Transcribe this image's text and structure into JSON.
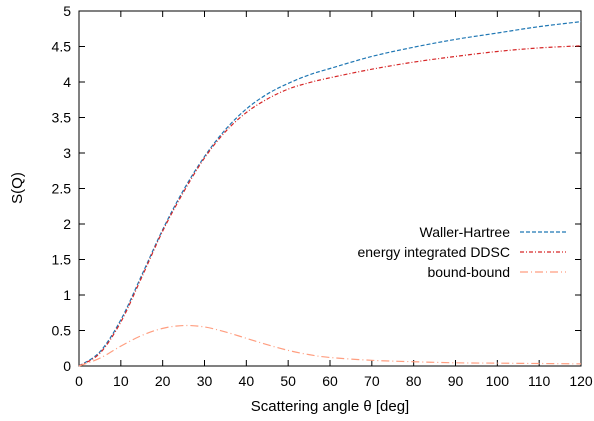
{
  "chart_data": {
    "type": "line",
    "title": "",
    "xlabel": "Scattering angle θ [deg]",
    "ylabel": "S(Q)",
    "xlim": [
      0,
      120
    ],
    "ylim": [
      0,
      5
    ],
    "xticks": [
      0,
      10,
      20,
      30,
      40,
      50,
      60,
      70,
      80,
      90,
      100,
      110,
      120
    ],
    "yticks": [
      0,
      0.5,
      1,
      1.5,
      2,
      2.5,
      3,
      3.5,
      4,
      4.5,
      5
    ],
    "grid": false,
    "legend_position": "right",
    "series": [
      {
        "name": "Waller-Hartree",
        "color": "#1f77b4",
        "dash": "dashed",
        "x": [
          0,
          5,
          10,
          15,
          20,
          25,
          30,
          35,
          40,
          45,
          50,
          55,
          60,
          70,
          80,
          90,
          100,
          110,
          120
        ],
        "y": [
          0.0,
          0.2,
          0.65,
          1.28,
          1.92,
          2.48,
          2.95,
          3.33,
          3.62,
          3.83,
          3.98,
          4.1,
          4.19,
          4.36,
          4.49,
          4.6,
          4.69,
          4.78,
          4.85
        ]
      },
      {
        "name": "energy integrated DDSC",
        "color": "#d62728",
        "dash": "dash-dot",
        "x": [
          0,
          5,
          10,
          15,
          20,
          25,
          30,
          35,
          40,
          45,
          50,
          55,
          60,
          70,
          80,
          90,
          100,
          110,
          120
        ],
        "y": [
          0.0,
          0.18,
          0.62,
          1.25,
          1.9,
          2.45,
          2.93,
          3.3,
          3.57,
          3.76,
          3.9,
          3.99,
          4.06,
          4.18,
          4.28,
          4.36,
          4.43,
          4.48,
          4.51
        ]
      },
      {
        "name": "bound-bound",
        "color": "#ff9e80",
        "dash": "long-dash-dot",
        "x": [
          0,
          5,
          10,
          15,
          20,
          25,
          30,
          35,
          40,
          45,
          50,
          55,
          60,
          70,
          80,
          90,
          100,
          110,
          120
        ],
        "y": [
          0.0,
          0.11,
          0.28,
          0.43,
          0.53,
          0.57,
          0.55,
          0.48,
          0.39,
          0.3,
          0.22,
          0.16,
          0.12,
          0.08,
          0.06,
          0.045,
          0.04,
          0.035,
          0.03
        ]
      }
    ]
  }
}
